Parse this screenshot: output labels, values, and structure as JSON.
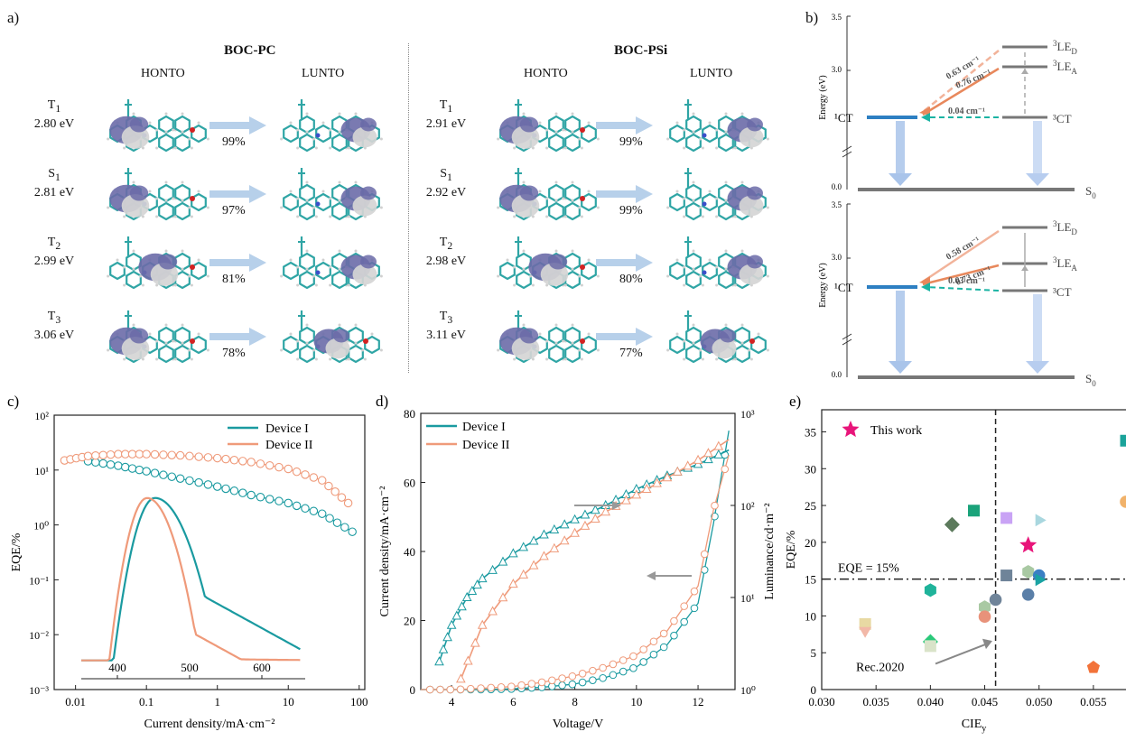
{
  "panel_a": {
    "label": "a)",
    "left": {
      "title": "BOC-PC",
      "col_h": "HONTO",
      "col_l": "LUNTO",
      "rows": [
        {
          "state": "T",
          "sub": "1",
          "energy": "2.80 eV",
          "pct": "99%"
        },
        {
          "state": "S",
          "sub": "1",
          "energy": "2.81 eV",
          "pct": "97%"
        },
        {
          "state": "T",
          "sub": "2",
          "energy": "2.99 eV",
          "pct": "81%"
        },
        {
          "state": "T",
          "sub": "3",
          "energy": "3.06 eV",
          "pct": "78%"
        }
      ]
    },
    "right": {
      "title": "BOC-PSi",
      "col_h": "HONTO",
      "col_l": "LUNTO",
      "rows": [
        {
          "state": "T",
          "sub": "1",
          "energy": "2.91 eV",
          "pct": "99%"
        },
        {
          "state": "S",
          "sub": "1",
          "energy": "2.92 eV",
          "pct": "99%"
        },
        {
          "state": "T",
          "sub": "2",
          "energy": "2.98 eV",
          "pct": "80%"
        },
        {
          "state": "T",
          "sub": "3",
          "energy": "3.11 eV",
          "pct": "77%"
        }
      ]
    }
  },
  "panel_b": {
    "label": "b)",
    "ylabel": "Energy (eV)",
    "ticks": [
      "3.5",
      "3.0",
      "0.0"
    ],
    "top": {
      "k1": "0.63 cm⁻¹",
      "k2": "0.76 cm⁻¹",
      "k3": "0.04 cm⁻¹",
      "levels": {
        "ct1": "¹CT",
        "led_base": "LE",
        "led_sub": "D",
        "lea_base": "LE",
        "lea_sub": "A",
        "ct3": "³CT",
        "s0_base": "S",
        "s0_sub": "0",
        "sup3": "3"
      }
    },
    "bottom": {
      "k1": "0.58 cm⁻¹",
      "k2": "0.73 cm⁻¹",
      "k3": "0.03 cm⁻¹",
      "levels": {
        "ct1": "¹CT",
        "led_base": "LE",
        "led_sub": "D",
        "lea_base": "LE",
        "lea_sub": "A",
        "ct3": "³CT",
        "s0_base": "S",
        "s0_sub": "0",
        "sup3": "3"
      }
    }
  },
  "chart_data": [
    {
      "panel": "c)",
      "type": "scatter",
      "xlabel": "Current density/mA·cm⁻²",
      "ylabel": "EQE/%",
      "xscale": "log",
      "yscale": "log",
      "xlim": [
        0.005,
        120
      ],
      "ylim": [
        0.001,
        100
      ],
      "xticks": [
        "0.01",
        "0.1",
        "1",
        "10",
        "100"
      ],
      "yticks": [
        "10⁻³",
        "10⁻²",
        "10⁻¹",
        "10⁰",
        "10¹",
        "10²"
      ],
      "inset_xticks": [
        "400",
        "500",
        "600"
      ],
      "legend": [
        "Device I",
        "Device II"
      ],
      "series": [
        {
          "name": "Device I",
          "color": "#1a9aa0",
          "x": [
            0.015,
            0.04,
            0.1,
            0.3,
            1,
            3,
            10,
            30,
            80
          ],
          "y": [
            14.5,
            12,
            9.5,
            7,
            5,
            3.5,
            2.5,
            1.6,
            0.75
          ]
        },
        {
          "name": "Device II",
          "color": "#ef9a7a",
          "x": [
            0.007,
            0.015,
            0.04,
            0.1,
            0.3,
            1,
            3,
            10,
            30,
            70
          ],
          "y": [
            15,
            18,
            19.5,
            19.5,
            18.5,
            16.5,
            14,
            10.5,
            6.5,
            2.5
          ]
        }
      ],
      "inset_series": [
        {
          "name": "Device I",
          "peak_nm": 452
        },
        {
          "name": "Device II",
          "peak_nm": 441
        }
      ]
    },
    {
      "panel": "d)",
      "type": "line",
      "xlabel": "Voltage/V",
      "ylabel": "Current density/mA·cm⁻²",
      "y2label": "Luminance/cd·m⁻²",
      "xlim": [
        3,
        13.2
      ],
      "ylim": [
        0,
        80
      ],
      "y2lim": [
        1,
        1000
      ],
      "y2scale": "log",
      "xticks": [
        "4",
        "6",
        "8",
        "10",
        "12"
      ],
      "yticks": [
        "0",
        "20",
        "40",
        "60",
        "80"
      ],
      "y2ticks": [
        "10⁰",
        "10¹",
        "10²",
        "10³"
      ],
      "legend": [
        "Device I",
        "Device II"
      ],
      "current": [
        {
          "name": "Device I",
          "color": "#1a9aa0",
          "x": [
            3,
            5,
            6,
            7,
            8,
            9,
            10,
            11,
            12,
            12.5,
            13
          ],
          "y": [
            0,
            0,
            0.2,
            0.7,
            1.6,
            3.5,
            6.5,
            13,
            25,
            48,
            75
          ]
        },
        {
          "name": "Device II",
          "color": "#ef9a7a",
          "x": [
            3,
            4.2,
            6,
            7,
            8,
            9,
            10,
            11,
            12,
            12.5,
            13
          ],
          "y": [
            0,
            0,
            0.9,
            2.2,
            4,
            6.5,
            10,
            17,
            30,
            52,
            68
          ]
        }
      ],
      "luminance": [
        {
          "name": "Device I",
          "x": [
            3.6,
            4,
            4.5,
            5,
            6,
            7,
            8,
            9,
            10,
            11,
            12,
            13
          ],
          "y": [
            2,
            5,
            10,
            16,
            30,
            48,
            70,
            100,
            150,
            210,
            280,
            400
          ]
        },
        {
          "name": "Device II",
          "x": [
            4.3,
            5,
            6,
            7,
            8,
            9,
            10,
            11,
            12,
            13
          ],
          "y": [
            1.3,
            5,
            14,
            28,
            50,
            85,
            130,
            200,
            310,
            520
          ]
        }
      ]
    },
    {
      "panel": "e)",
      "type": "scatter",
      "xlabel": "CIE",
      "xlabel_sub": "y",
      "ylabel": "EQE/%",
      "xlim": [
        0.03,
        0.058
      ],
      "ylim": [
        0,
        38
      ],
      "xticks": [
        "0.030",
        "0.035",
        "0.040",
        "0.045",
        "0.050",
        "0.055"
      ],
      "yticks": [
        "0",
        "5",
        "10",
        "15",
        "20",
        "25",
        "30",
        "35"
      ],
      "annotations": {
        "eqe_line": "EQE = 15%",
        "rec": "Rec.2020",
        "this_work": "This work"
      },
      "points": [
        {
          "x": 0.049,
          "y": 19.6,
          "color": "#e8157a",
          "shape": "star"
        },
        {
          "x": 0.044,
          "y": 24.3,
          "color": "#1aa37a",
          "shape": "square"
        },
        {
          "x": 0.042,
          "y": 22.4,
          "color": "#5c7a5c",
          "shape": "diamond"
        },
        {
          "x": 0.047,
          "y": 23.3,
          "color": "#c9a3f5",
          "shape": "square"
        },
        {
          "x": 0.05,
          "y": 23.0,
          "color": "#a9d7df",
          "shape": "triR"
        },
        {
          "x": 0.058,
          "y": 33.8,
          "color": "#1aa39a",
          "shape": "square"
        },
        {
          "x": 0.058,
          "y": 25.5,
          "color": "#f1b26a",
          "shape": "circle"
        },
        {
          "x": 0.047,
          "y": 15.5,
          "color": "#6f8499",
          "shape": "square"
        },
        {
          "x": 0.049,
          "y": 16.0,
          "color": "#a9c9a3",
          "shape": "hexagon"
        },
        {
          "x": 0.05,
          "y": 15.5,
          "color": "#3b7fc4",
          "shape": "circle"
        },
        {
          "x": 0.05,
          "y": 14.9,
          "color": "#1aa3a3",
          "shape": "triR"
        },
        {
          "x": 0.04,
          "y": 13.5,
          "color": "#1fb39a",
          "shape": "hexagon"
        },
        {
          "x": 0.046,
          "y": 12.2,
          "color": "#6f8499",
          "shape": "circle"
        },
        {
          "x": 0.045,
          "y": 11.2,
          "color": "#a9c9a3",
          "shape": "hexagon"
        },
        {
          "x": 0.049,
          "y": 12.9,
          "color": "#5a7fa8",
          "shape": "circle"
        },
        {
          "x": 0.045,
          "y": 9.9,
          "color": "#e8927a",
          "shape": "circle"
        },
        {
          "x": 0.034,
          "y": 8.9,
          "color": "#e8d9a3",
          "shape": "square"
        },
        {
          "x": 0.034,
          "y": 8.0,
          "color": "#f2b8a8",
          "shape": "triD"
        },
        {
          "x": 0.04,
          "y": 6.5,
          "color": "#2ac97a",
          "shape": "diamond"
        },
        {
          "x": 0.04,
          "y": 5.9,
          "color": "#d9e3c9",
          "shape": "square"
        },
        {
          "x": 0.055,
          "y": 3.0,
          "color": "#f2733a",
          "shape": "pentagon"
        }
      ]
    }
  ]
}
